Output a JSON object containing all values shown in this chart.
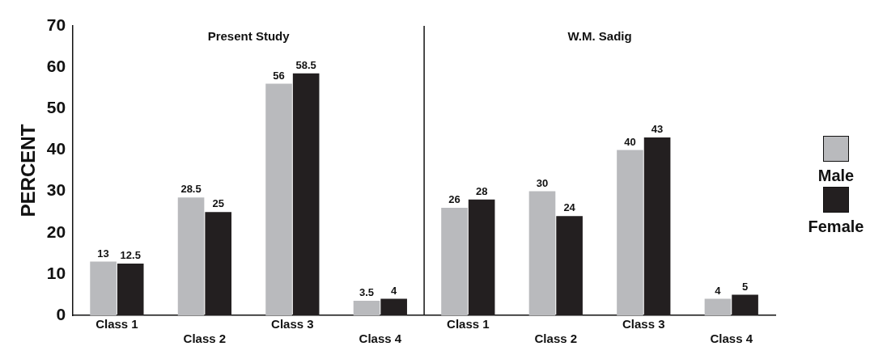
{
  "chart_data": {
    "type": "bar",
    "ylabel": "PERCENT",
    "categories": [
      "Class 1",
      "Class 2",
      "Class 3",
      "Class 4",
      "Class 1",
      "Class 2",
      "Class 3",
      "Class 4"
    ],
    "series": [
      {
        "name": "Male",
        "color": "#b9babd",
        "values": [
          13,
          28.5,
          56,
          3.5,
          26,
          30,
          40,
          4
        ]
      },
      {
        "name": "Female",
        "color": "#231f20",
        "values": [
          12.5,
          25,
          58.5,
          4,
          28,
          24,
          43,
          5
        ]
      }
    ],
    "ylim": [
      0,
      70
    ],
    "yticks": [
      0,
      10,
      20,
      30,
      40,
      50,
      60,
      70
    ],
    "grid": false,
    "legend": "right",
    "data_labels": true,
    "annotations": [
      "Present Study",
      "W.M. Sadig"
    ]
  }
}
